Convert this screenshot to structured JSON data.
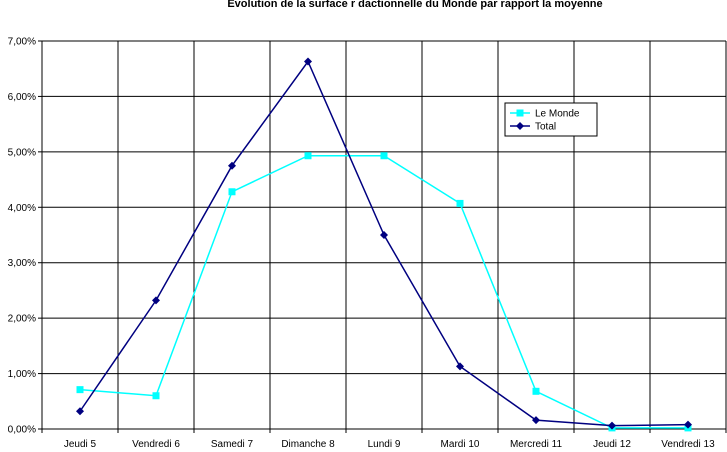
{
  "chart_data": {
    "type": "line",
    "title": "Evolution de la surface r  dactionnelle du Monde par rapport    la moyenne",
    "xlabel": "",
    "ylabel": "",
    "categories": [
      "Jeudi 5",
      "Vendredi 6",
      "Samedi 7",
      "Dimanche 8",
      "Lundi 9",
      "Mardi 10",
      "Mercredi 11",
      "Jeudi 12",
      "Vendredi 13"
    ],
    "ylim": [
      0,
      0.07
    ],
    "yticks": [
      "0,00%",
      "1,00%",
      "2,00%",
      "3,00%",
      "4,00%",
      "5,00%",
      "6,00%",
      "7,00%"
    ],
    "grid": true,
    "legend_position": "top-right",
    "series": [
      {
        "name": "Le Monde",
        "color": "#00ffff",
        "marker": "square",
        "values": [
          0.0071,
          0.006,
          0.0428,
          0.0493,
          0.0493,
          0.0407,
          0.0068,
          0.0002,
          0.0002
        ]
      },
      {
        "name": "Total",
        "color": "#000080",
        "marker": "diamond",
        "values": [
          0.0032,
          0.0232,
          0.0475,
          0.0663,
          0.035,
          0.0113,
          0.0016,
          0.0006,
          0.0008
        ]
      }
    ]
  }
}
